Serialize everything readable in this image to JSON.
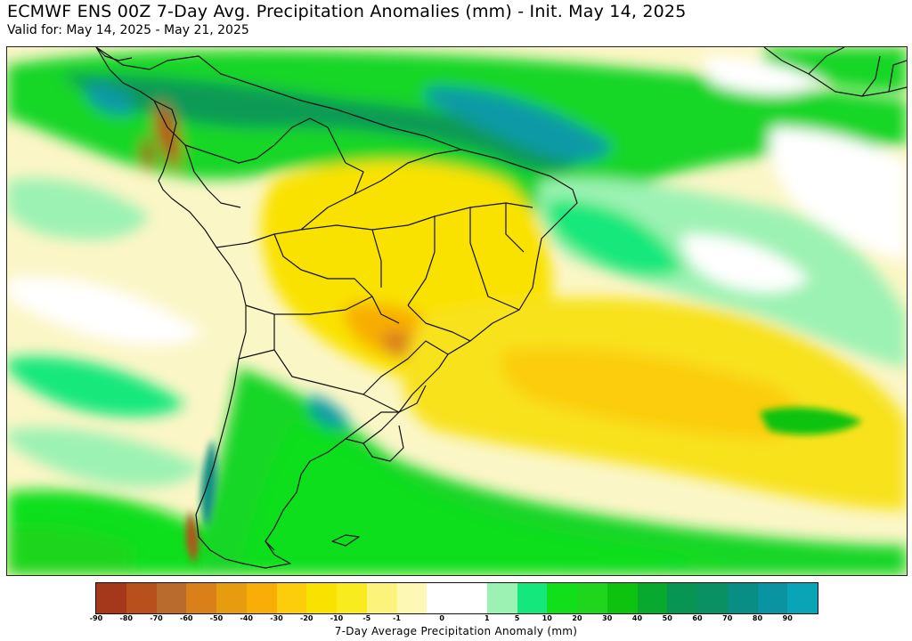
{
  "header": {
    "title": "ECMWF ENS 00Z 7-Day Avg. Precipitation Anomalies (mm) - Init. May 14, 2025",
    "valid": "Valid for: May 14, 2025 - May 21, 2025"
  },
  "legend": {
    "label": "7-Day Average Precipitation Anomaly (mm)",
    "colors": [
      "#a5371a",
      "#b8501e",
      "#b96a2d",
      "#d9801a",
      "#e79c10",
      "#f8ae06",
      "#fbcd0a",
      "#f9e200",
      "#f8ec1e",
      "#fcf37c",
      "#fdf9b4",
      "#ffffff",
      "#ffffff",
      "#9cf2b2",
      "#14e87c",
      "#11df1b",
      "#1fd51e",
      "#0dc30f",
      "#07a92e",
      "#089553",
      "#0b9064",
      "#0a8d84",
      "#0a93a0",
      "#09a5b6"
    ],
    "ticks": [
      "-90",
      "-80",
      "-70",
      "-60",
      "-50",
      "-40",
      "-30",
      "-20",
      "-10",
      "-5",
      "-1",
      "0",
      "1",
      "5",
      "10",
      "20",
      "30",
      "40",
      "50",
      "60",
      "70",
      "80",
      "90"
    ]
  },
  "map": {
    "region": "South America"
  }
}
